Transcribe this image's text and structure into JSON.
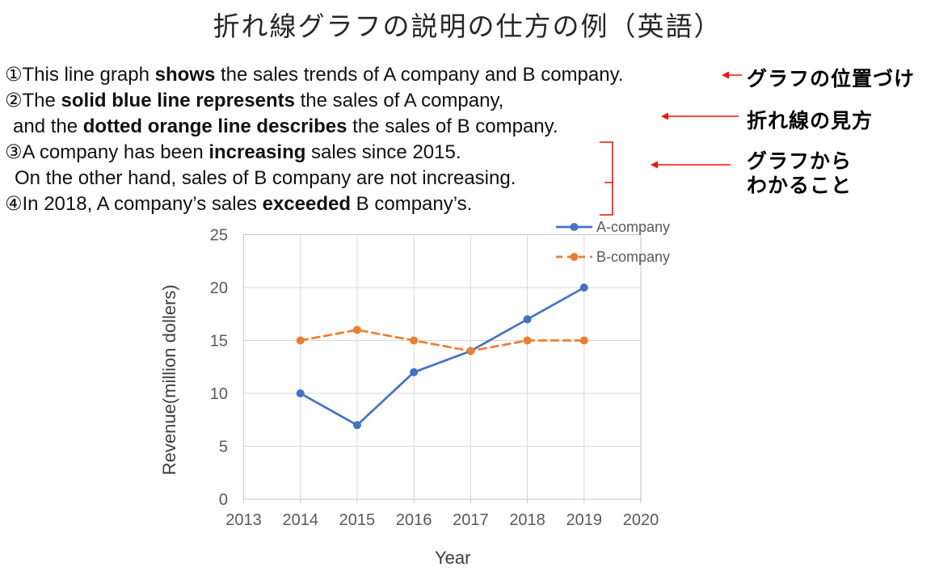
{
  "slide": {
    "title": "折れ線グラフの説明の仕方の例（英語）"
  },
  "body": {
    "lines": [
      {
        "segments": [
          {
            "text": "①This line graph "
          },
          {
            "text": "shows",
            "bold": true
          },
          {
            "text": " the sales trends of A company and B company."
          }
        ]
      },
      {
        "segments": [
          {
            "text": "②The "
          },
          {
            "text": "solid blue line represents",
            "bold": true
          },
          {
            "text": " the sales of A company,"
          }
        ]
      },
      {
        "segments": [
          {
            "text": "and the "
          },
          {
            "text": "dotted orange line describes",
            "bold": true
          },
          {
            "text": " the sales of B company."
          }
        ]
      },
      {
        "segments": [
          {
            "text": "③A company has been "
          },
          {
            "text": "increasing",
            "bold": true
          },
          {
            "text": " sales since 2015."
          }
        ]
      },
      {
        "segments": [
          {
            "text": "On the other hand, sales of B company are not increasing."
          }
        ]
      },
      {
        "segments": [
          {
            "text": "④In 2018, A company’s sales "
          },
          {
            "text": "exceeded",
            "bold": true
          },
          {
            "text": " B company’s."
          }
        ]
      }
    ]
  },
  "side_labels": [
    {
      "text": "グラフの位置づけ"
    },
    {
      "text": "折れ線の見方"
    },
    {
      "line1": "グラフから",
      "line2": "わかること"
    }
  ],
  "annotation_color": "#FA0D00",
  "chart_data": {
    "type": "line",
    "x_categories": [
      "2013",
      "2014",
      "2015",
      "2016",
      "2017",
      "2018",
      "2019",
      "2020"
    ],
    "series": [
      {
        "name": "A-company",
        "style": "solid",
        "color": "#4472C4",
        "x": [
          2014,
          2015,
          2016,
          2017,
          2018,
          2019
        ],
        "values": [
          10,
          7,
          12,
          14,
          17,
          20
        ]
      },
      {
        "name": "B-company",
        "style": "dashed",
        "color": "#ED7D31",
        "x": [
          2014,
          2015,
          2016,
          2017,
          2018,
          2019
        ],
        "values": [
          15,
          16,
          15,
          14,
          15,
          15
        ]
      }
    ],
    "xlabel": "Year",
    "ylabel": "Revenue(million  dollers)",
    "ylim": [
      0,
      25
    ],
    "y_ticks": [
      0,
      5,
      10,
      15,
      20,
      25
    ],
    "grid": true,
    "legend_position": "top-right",
    "colors": {
      "gridline": "#D9D9D9",
      "plot_border": "#C6C6C6",
      "tick_text": "#595959",
      "axis_title_text": "#3F3F3F",
      "legend_text": "#595959"
    }
  }
}
